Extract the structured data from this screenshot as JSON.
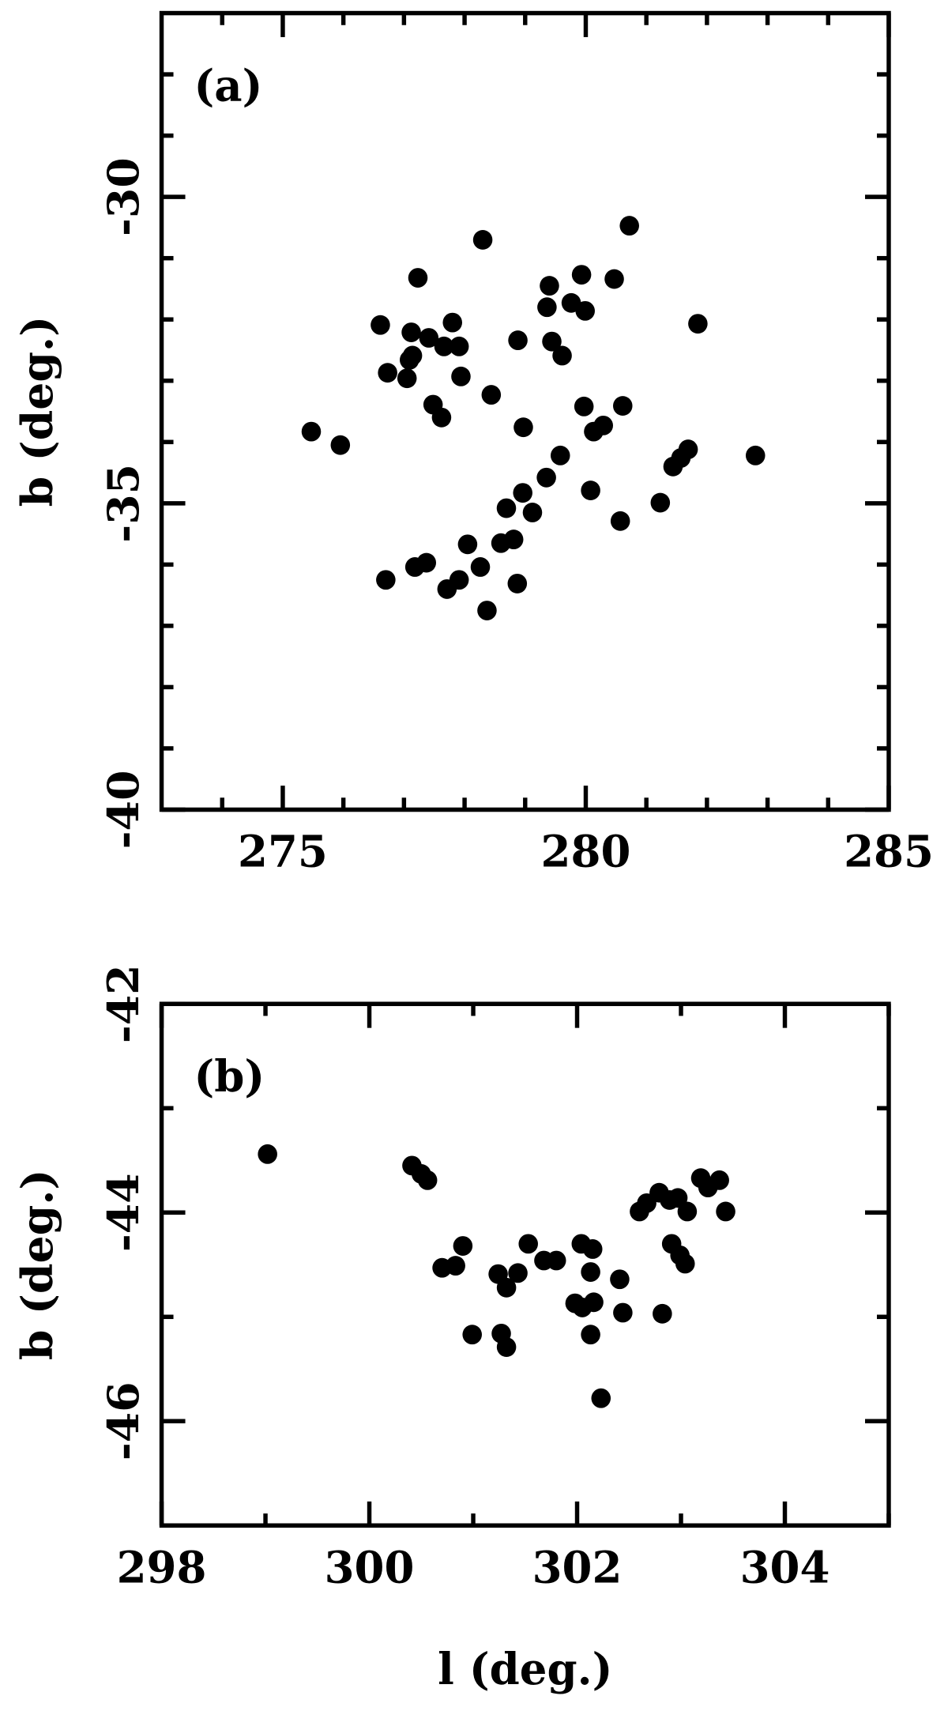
{
  "chart_data": [
    {
      "type": "scatter",
      "annotation": "(a)",
      "ylabel": "b (deg.)",
      "color": "#000000",
      "xlim": [
        273,
        285
      ],
      "ylim": [
        -40,
        -27
      ],
      "xticks": [
        275,
        280,
        285
      ],
      "yticks": [
        -30,
        -35,
        -40
      ],
      "xminorticks": [
        274,
        276,
        277,
        278,
        279,
        281,
        282,
        283,
        284
      ],
      "yminorticks": [
        -28,
        -29,
        -31,
        -32,
        -33,
        -34,
        -36,
        -37,
        -38,
        -39
      ],
      "x": [
        275.47,
        275.95,
        276.61,
        276.73,
        277.05,
        277.09,
        277.12,
        277.14,
        277.23,
        277.41,
        277.48,
        277.62,
        277.66,
        277.8,
        277.91,
        277.94,
        278.3,
        278.44,
        278.88,
        278.97,
        278.87,
        278.69,
        278.6,
        278.81,
        278.96,
        279.12,
        279.35,
        279.4,
        279.36,
        279.44,
        279.61,
        279.58,
        279.76,
        279.93,
        279.99,
        279.97,
        280.08,
        280.13,
        280.29,
        280.47,
        280.61,
        280.72,
        280.57,
        281.23,
        281.44,
        281.57,
        281.69,
        281.85,
        282.8,
        276.7,
        277.18,
        277.37,
        277.71,
        277.91,
        278.05,
        278.26,
        278.37
      ],
      "values": [
        -33.83,
        -34.05,
        -32.09,
        -32.87,
        -32.96,
        -32.66,
        -32.21,
        -32.59,
        -31.32,
        -32.3,
        -33.39,
        -33.6,
        -32.44,
        -32.05,
        -32.44,
        -32.93,
        -30.7,
        -33.23,
        -32.34,
        -33.76,
        -36.31,
        -35.08,
        -35.65,
        -35.59,
        -34.83,
        -35.15,
        -34.58,
        -31.45,
        -31.8,
        -32.36,
        -32.59,
        -34.22,
        -31.73,
        -31.27,
        -31.86,
        -33.42,
        -34.79,
        -33.83,
        -33.73,
        -31.34,
        -33.41,
        -30.47,
        -35.29,
        -34.99,
        -34.4,
        -34.26,
        -34.12,
        -32.07,
        -34.22,
        -36.25,
        -36.04,
        -35.97,
        -36.4,
        -36.25,
        -35.67,
        -36.04,
        -36.75
      ]
    },
    {
      "type": "scatter",
      "annotation": "(b)",
      "ylabel": "b (deg.)",
      "xlabel": "l (deg.)",
      "color": "#000000",
      "xlim": [
        298,
        305
      ],
      "ylim": [
        -47,
        -42
      ],
      "xticks": [
        298,
        300,
        302,
        304
      ],
      "yticks": [
        -42,
        -44,
        -46
      ],
      "xminorticks": [
        299,
        301,
        303,
        305
      ],
      "yminorticks": [
        -43,
        -45,
        -47
      ],
      "x": [
        299.02,
        300.41,
        300.5,
        300.56,
        300.7,
        300.83,
        300.9,
        300.99,
        301.24,
        301.32,
        301.43,
        301.27,
        301.32,
        301.53,
        301.68,
        301.8,
        301.98,
        302.04,
        302.15,
        302.13,
        302.05,
        302.16,
        302.13,
        302.23,
        302.41,
        302.44,
        302.6,
        302.67,
        302.79,
        302.82,
        302.89,
        302.91,
        302.97,
        302.99,
        303.04,
        303.06,
        303.19,
        303.26,
        303.37,
        303.43
      ],
      "values": [
        -43.44,
        -43.55,
        -43.63,
        -43.69,
        -44.53,
        -44.51,
        -44.32,
        -45.17,
        -44.59,
        -44.72,
        -44.58,
        -45.16,
        -45.29,
        -44.3,
        -44.46,
        -44.46,
        -44.87,
        -44.3,
        -44.35,
        -44.57,
        -44.91,
        -44.86,
        -45.17,
        -45.78,
        -44.64,
        -44.96,
        -43.99,
        -43.91,
        -43.81,
        -44.97,
        -43.88,
        -44.3,
        -43.86,
        -44.41,
        -44.49,
        -43.99,
        -43.67,
        -43.76,
        -43.69,
        -43.99
      ]
    }
  ]
}
